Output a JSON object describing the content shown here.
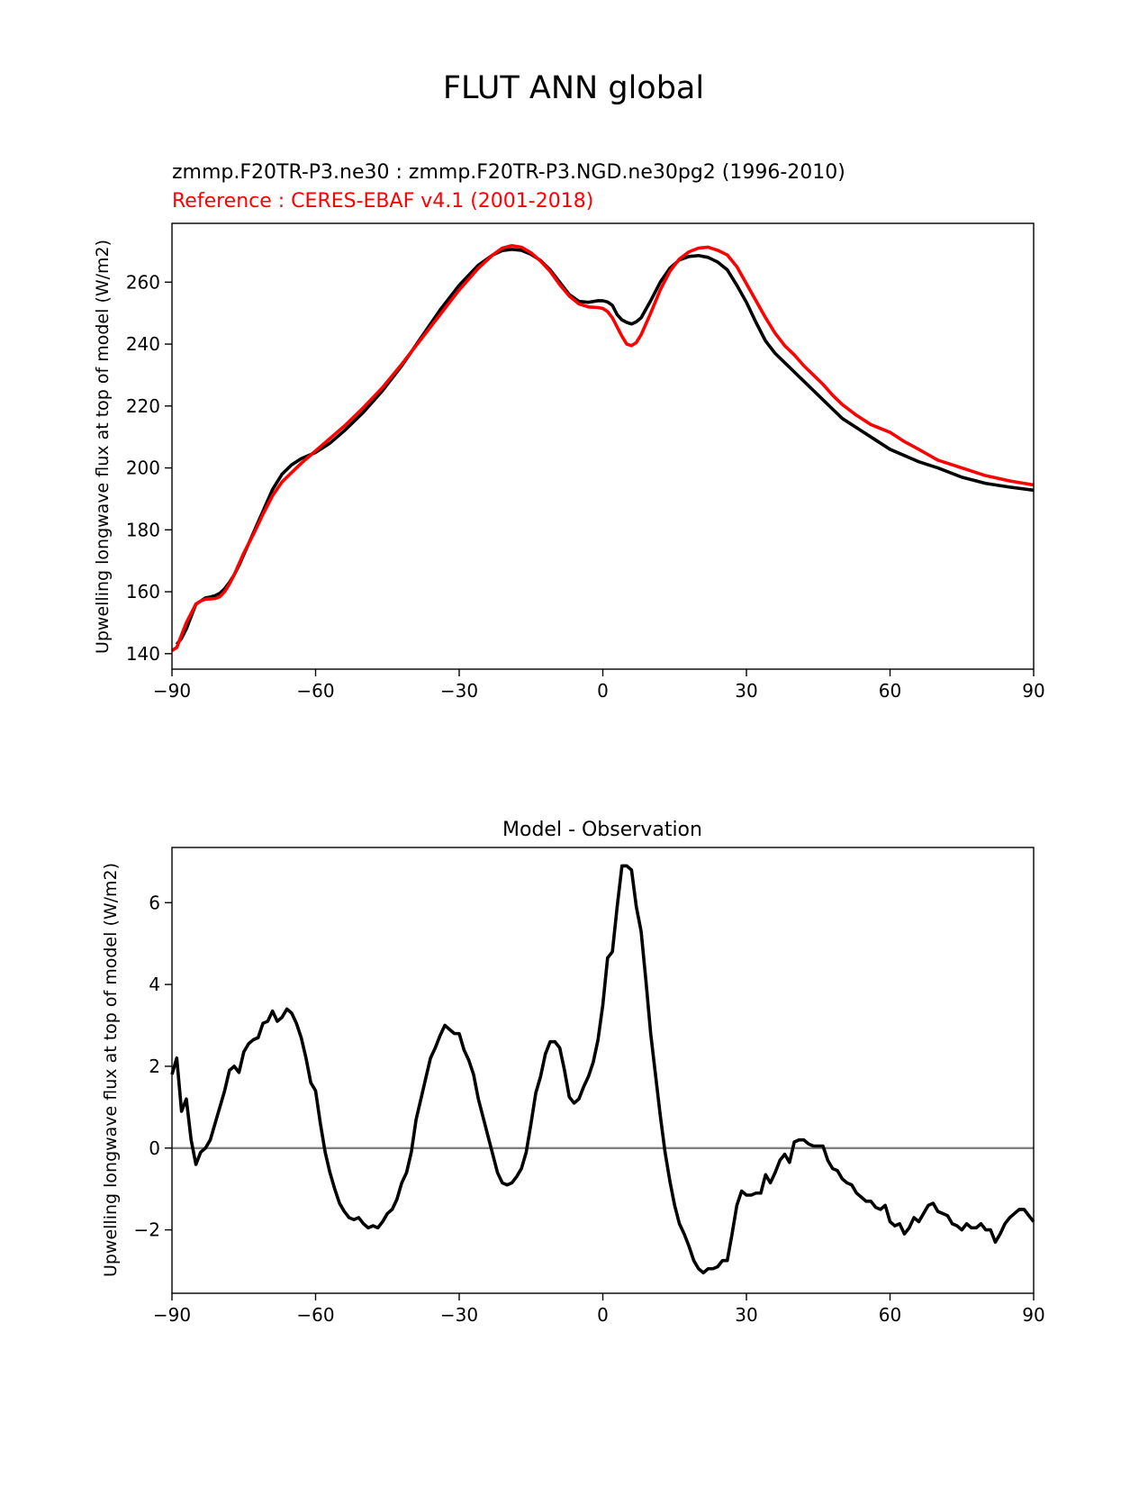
{
  "figure": {
    "title": "FLUT ANN global"
  },
  "chart_data": [
    {
      "type": "line",
      "title_line1": "zmmp.F20TR-P3.ne30 : zmmp.F20TR-P3.NGD.ne30pg2 (1996-2010)",
      "title_line2": "Reference : CERES-EBAF v4.1 (2001-2018)",
      "xlabel": "",
      "ylabel": "Upwelling longwave flux at top of model (W/m2)",
      "xlim": [
        -90,
        90
      ],
      "ylim": [
        135,
        279
      ],
      "xticks": [
        -90,
        -60,
        -30,
        0,
        30,
        60,
        90
      ],
      "xtick_labels": [
        "−90",
        "−60",
        "−30",
        "0",
        "30",
        "60",
        "90"
      ],
      "yticks": [
        140,
        160,
        180,
        200,
        220,
        240,
        260
      ],
      "ytick_labels": [
        "140",
        "160",
        "180",
        "200",
        "220",
        "240",
        "260"
      ],
      "series": [
        {
          "name": "zmmp.F20TR-P3.ne30 : zmmp.F20TR-P3.NGD.ne30pg2 (1996-2010)",
          "color": "#000000",
          "x": [
            -89,
            -88,
            -87,
            -86,
            -85,
            -84,
            -83,
            -82,
            -81,
            -80,
            -79,
            -78,
            -77,
            -76,
            -75,
            -73,
            -71,
            -69,
            -67,
            -65,
            -63,
            -60,
            -57,
            -54,
            -50,
            -46,
            -42,
            -38,
            -34,
            -30,
            -26,
            -23,
            -21,
            -19,
            -17,
            -15,
            -13,
            -11,
            -9,
            -7,
            -5,
            -3,
            -1,
            0,
            1,
            2,
            3,
            4,
            5,
            6,
            7,
            8,
            10,
            12,
            14,
            16,
            18,
            20,
            22,
            24,
            26,
            28,
            30,
            32,
            34,
            36,
            38,
            40,
            42,
            44,
            46,
            48,
            50,
            53,
            56,
            60,
            63,
            66,
            70,
            75,
            80,
            85,
            90
          ],
          "values": [
            143,
            145,
            148,
            152,
            156,
            157,
            158,
            158.3,
            158.7,
            159.5,
            161,
            163,
            165.5,
            168.5,
            172,
            179,
            186,
            193,
            198,
            201,
            203,
            205,
            208,
            212,
            218,
            225,
            233,
            242,
            251,
            259,
            265.5,
            268.8,
            270.2,
            270.6,
            270.3,
            269,
            267,
            264,
            260,
            256,
            253.8,
            253.5,
            254,
            254,
            253.6,
            252.5,
            249.5,
            247.8,
            247,
            246.5,
            247.2,
            248.5,
            254,
            260,
            264.5,
            267.2,
            268.3,
            268.6,
            268,
            266.5,
            264,
            259,
            253.5,
            247,
            241,
            237,
            234,
            231,
            228,
            225,
            222,
            219,
            216,
            213,
            210,
            206,
            204,
            202,
            200,
            197,
            195,
            193.8,
            192.8
          ]
        },
        {
          "name": "Reference : CERES-EBAF v4.1 (2001-2018)",
          "color": "#ff0000",
          "x": [
            -90,
            -89,
            -88,
            -87,
            -86,
            -85,
            -84,
            -83,
            -82,
            -81,
            -80,
            -79,
            -78,
            -77,
            -76,
            -75,
            -73,
            -71,
            -69,
            -67,
            -65,
            -63,
            -60,
            -57,
            -54,
            -50,
            -46,
            -42,
            -38,
            -34,
            -30,
            -26,
            -23,
            -21,
            -19,
            -17,
            -15,
            -13,
            -11,
            -9,
            -7,
            -5,
            -3,
            -1,
            0,
            1,
            2,
            3,
            4,
            5,
            6,
            7,
            8,
            10,
            12,
            14,
            16,
            18,
            20,
            22,
            24,
            26,
            28,
            30,
            32,
            34,
            36,
            38,
            40,
            42,
            44,
            46,
            48,
            50,
            53,
            56,
            60,
            63,
            66,
            70,
            75,
            80,
            85,
            90
          ],
          "values": [
            141,
            142,
            146,
            150,
            153,
            156,
            157,
            157.6,
            157.7,
            157.8,
            158.4,
            160,
            162.5,
            165.5,
            169,
            172.5,
            178.5,
            185,
            191,
            195.5,
            198.5,
            201.5,
            205.5,
            209.5,
            213.5,
            219.5,
            226,
            233.5,
            241.5,
            249.5,
            257.5,
            264.5,
            268.8,
            271,
            271.8,
            271.3,
            269.5,
            266.8,
            263.5,
            259.2,
            255.5,
            253,
            252,
            251.8,
            251.5,
            250.5,
            248.5,
            245.5,
            242.5,
            240,
            239.5,
            240.5,
            243,
            250,
            257.5,
            263.5,
            267.5,
            269.8,
            271,
            271.3,
            270.3,
            268.8,
            265,
            259.5,
            254,
            248.5,
            243.5,
            239.5,
            236.5,
            233,
            230,
            227,
            223.5,
            220.5,
            217,
            214,
            211.5,
            208.5,
            206,
            202.5,
            200,
            197.5,
            195.8,
            194.5
          ]
        }
      ]
    },
    {
      "type": "line",
      "title": "Model - Observation",
      "xlabel": "",
      "ylabel": "Upwelling longwave flux at top of model (W/m2)",
      "xlim": [
        -90,
        90
      ],
      "ylim": [
        -3.55,
        7.35
      ],
      "xticks": [
        -90,
        -60,
        -30,
        0,
        30,
        60,
        90
      ],
      "xtick_labels": [
        "−90",
        "−60",
        "−30",
        "0",
        "30",
        "60",
        "90"
      ],
      "yticks": [
        -2,
        0,
        2,
        4,
        6
      ],
      "ytick_labels": [
        "−2",
        "0",
        "2",
        "4",
        "6"
      ],
      "zero_line_color": "#808080",
      "series": [
        {
          "name": "Model - Observation",
          "color": "#000000",
          "x": [
            -90,
            -89,
            -88,
            -87,
            -86,
            -85,
            -84,
            -83,
            -82,
            -81,
            -80,
            -79,
            -78,
            -77,
            -76,
            -75,
            -74,
            -73,
            -72,
            -71,
            -70,
            -69,
            -68,
            -67,
            -66,
            -65,
            -64,
            -63,
            -62,
            -61,
            -60,
            -59,
            -58,
            -57,
            -56,
            -55,
            -54,
            -53,
            -52,
            -51,
            -50,
            -49,
            -48,
            -47,
            -46,
            -45,
            -44,
            -43,
            -42,
            -41,
            -40,
            -39,
            -38,
            -37,
            -36,
            -35,
            -34,
            -33,
            -32,
            -31,
            -30,
            -29,
            -28,
            -27,
            -26,
            -25,
            -24,
            -23,
            -22,
            -21,
            -20,
            -19,
            -18,
            -17,
            -16,
            -15,
            -14,
            -13,
            -12,
            -11,
            -10,
            -9,
            -8,
            -7,
            -6,
            -5,
            -4,
            -3,
            -2,
            -1,
            0,
            1,
            2,
            3,
            4,
            5,
            6,
            7,
            8,
            9,
            10,
            11,
            12,
            13,
            14,
            15,
            16,
            17,
            18,
            19,
            20,
            21,
            22,
            23,
            24,
            25,
            26,
            27,
            28,
            29,
            30,
            31,
            32,
            33,
            34,
            35,
            36,
            37,
            38,
            39,
            40,
            41,
            42,
            43,
            44,
            45,
            46,
            47,
            48,
            49,
            50,
            51,
            52,
            53,
            54,
            55,
            56,
            57,
            58,
            59,
            60,
            61,
            62,
            63,
            64,
            65,
            66,
            67,
            68,
            69,
            70,
            71,
            72,
            73,
            74,
            75,
            76,
            77,
            78,
            79,
            80,
            81,
            82,
            83,
            84,
            85,
            86,
            87,
            88,
            89,
            90
          ],
          "values": [
            1.8,
            2.2,
            0.9,
            1.2,
            0.2,
            -0.4,
            -0.1,
            0.0,
            0.2,
            0.6,
            1.0,
            1.4,
            1.9,
            2.0,
            1.85,
            2.35,
            2.55,
            2.65,
            2.7,
            3.05,
            3.1,
            3.35,
            3.1,
            3.2,
            3.4,
            3.3,
            3.05,
            2.7,
            2.2,
            1.6,
            1.4,
            0.6,
            -0.1,
            -0.6,
            -1.0,
            -1.35,
            -1.55,
            -1.7,
            -1.75,
            -1.7,
            -1.85,
            -1.95,
            -1.9,
            -1.95,
            -1.8,
            -1.6,
            -1.5,
            -1.25,
            -0.85,
            -0.6,
            -0.1,
            0.7,
            1.2,
            1.7,
            2.2,
            2.45,
            2.75,
            3.0,
            2.9,
            2.8,
            2.8,
            2.4,
            2.15,
            1.8,
            1.2,
            0.75,
            0.3,
            -0.15,
            -0.6,
            -0.85,
            -0.9,
            -0.85,
            -0.7,
            -0.5,
            -0.1,
            0.6,
            1.35,
            1.75,
            2.3,
            2.6,
            2.6,
            2.45,
            1.9,
            1.25,
            1.1,
            1.2,
            1.5,
            1.75,
            2.1,
            2.65,
            3.5,
            4.65,
            4.8,
            5.9,
            6.9,
            6.9,
            6.8,
            5.9,
            5.3,
            4.1,
            2.8,
            1.8,
            0.8,
            -0.1,
            -0.8,
            -1.4,
            -1.85,
            -2.1,
            -2.4,
            -2.75,
            -2.95,
            -3.05,
            -2.95,
            -2.95,
            -2.9,
            -2.75,
            -2.75,
            -2.1,
            -1.4,
            -1.05,
            -1.15,
            -1.15,
            -1.1,
            -1.1,
            -0.65,
            -0.85,
            -0.6,
            -0.3,
            -0.15,
            -0.35,
            0.15,
            0.2,
            0.2,
            0.1,
            0.05,
            0.05,
            0.05,
            -0.3,
            -0.5,
            -0.55,
            -0.75,
            -0.85,
            -0.9,
            -1.1,
            -1.2,
            -1.3,
            -1.3,
            -1.45,
            -1.5,
            -1.4,
            -1.8,
            -1.9,
            -1.85,
            -2.1,
            -1.95,
            -1.7,
            -1.8,
            -1.6,
            -1.4,
            -1.35,
            -1.55,
            -1.6,
            -1.65,
            -1.85,
            -1.9,
            -2.0,
            -1.85,
            -1.95,
            -1.95,
            -1.85,
            -2.0,
            -2.0,
            -2.3,
            -2.1,
            -1.85,
            -1.7,
            -1.6,
            -1.5,
            -1.5,
            -1.65,
            -1.8
          ]
        }
      ]
    }
  ]
}
